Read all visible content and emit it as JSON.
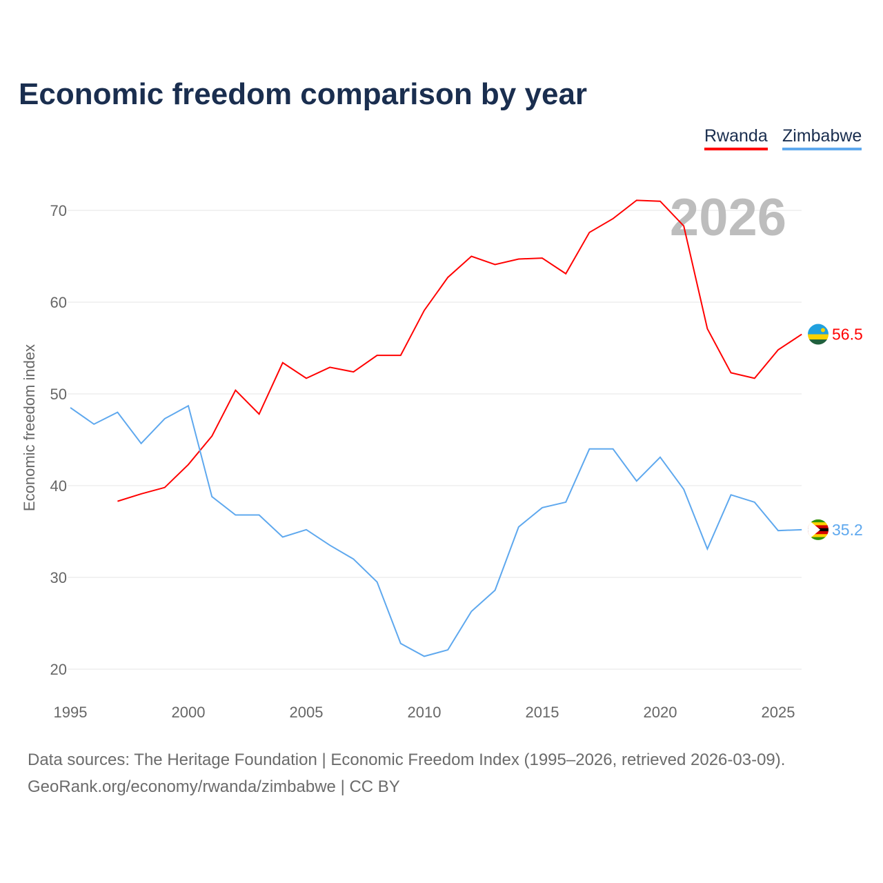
{
  "chart_data": {
    "type": "line",
    "title": "Economic freedom comparison by year",
    "xlabel": "",
    "ylabel": "Economic freedom index",
    "xlim": [
      1995,
      2026
    ],
    "ylim": [
      20,
      70
    ],
    "x_ticks": [
      "1995",
      "2000",
      "2005",
      "2010",
      "2015",
      "2020",
      "2025"
    ],
    "y_ticks": [
      "20",
      "30",
      "40",
      "50",
      "60",
      "70"
    ],
    "grid": true,
    "legend_placement": "top-right",
    "year_watermark": "2026",
    "series": [
      {
        "name": "Rwanda",
        "color": "#ff0000",
        "end_label": "56.5",
        "x": [
          1997,
          1998,
          1999,
          2000,
          2001,
          2002,
          2003,
          2004,
          2005,
          2006,
          2007,
          2008,
          2009,
          2010,
          2011,
          2012,
          2013,
          2014,
          2015,
          2016,
          2017,
          2018,
          2019,
          2020,
          2021,
          2022,
          2023,
          2024,
          2025,
          2026
        ],
        "values": [
          38.3,
          39.1,
          39.8,
          42.3,
          45.4,
          50.4,
          47.8,
          53.4,
          51.7,
          52.9,
          52.4,
          54.2,
          54.2,
          59.1,
          62.7,
          65.0,
          64.1,
          64.7,
          64.8,
          63.1,
          67.6,
          69.1,
          71.1,
          71.0,
          68.3,
          57.1,
          52.3,
          51.7,
          54.8,
          56.5
        ]
      },
      {
        "name": "Zimbabwe",
        "color": "#5ea8ee",
        "end_label": "35.2",
        "x": [
          1995,
          1996,
          1997,
          1998,
          1999,
          2000,
          2001,
          2002,
          2003,
          2004,
          2005,
          2006,
          2007,
          2008,
          2009,
          2010,
          2011,
          2012,
          2013,
          2014,
          2015,
          2016,
          2017,
          2018,
          2019,
          2020,
          2021,
          2022,
          2023,
          2024,
          2025,
          2026
        ],
        "values": [
          48.5,
          46.7,
          48.0,
          44.6,
          47.3,
          48.7,
          38.8,
          36.8,
          36.8,
          34.4,
          35.2,
          33.5,
          32.0,
          29.5,
          22.8,
          21.4,
          22.1,
          26.3,
          28.6,
          35.5,
          37.6,
          38.2,
          44.0,
          44.0,
          40.5,
          43.1,
          39.6,
          33.1,
          39.0,
          38.2,
          35.1,
          35.2
        ]
      }
    ]
  },
  "footer": {
    "line1": "Data sources: The Heritage Foundation | Economic Freedom Index (1995–2026, retrieved 2026-03-09).",
    "line2": "GeoRank.org/economy/rwanda/zimbabwe | CC BY"
  }
}
